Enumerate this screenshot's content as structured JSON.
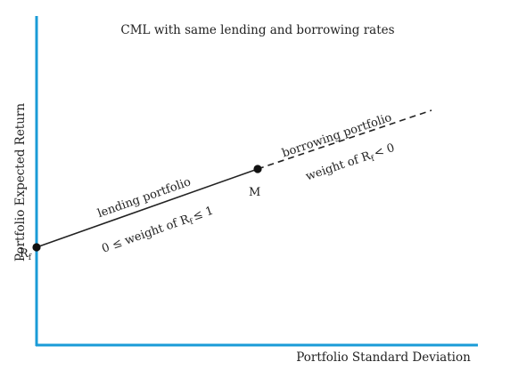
{
  "title": "CML with same lending and borrowing rates",
  "axes": {
    "x_label": "Portfolio Standard Deviation",
    "y_label": "Portfolio Expected Return",
    "color": "#1a9bd7"
  },
  "points": {
    "rf": {
      "main": "R",
      "sub": "f"
    },
    "m": {
      "label": "M"
    }
  },
  "segments": {
    "lending": {
      "label": "lending portfolio",
      "condition": {
        "pre": "0 ≤ weight of R",
        "sub": "f",
        "post": "≤ 1"
      }
    },
    "borrowing": {
      "label": "borrowing portfolio",
      "condition": {
        "pre": "weight of R",
        "sub": "f",
        "post": "< 0"
      }
    }
  },
  "colors": {
    "line": "#222222",
    "point": "#111111"
  }
}
